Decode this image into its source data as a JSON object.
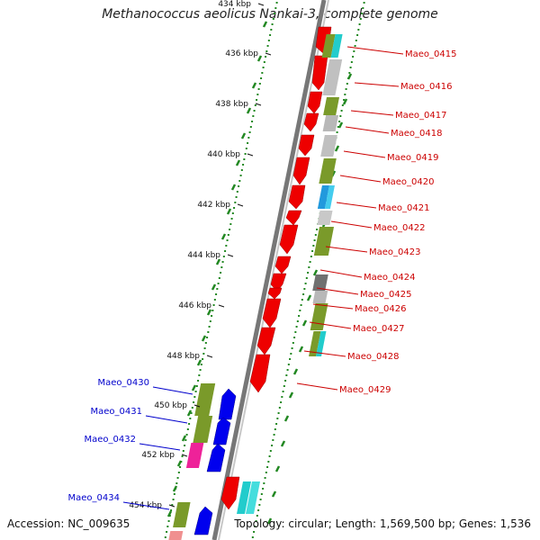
{
  "map": {
    "title": "Methanococcus aeolicus Nankai-3, complete genome",
    "accession": "Accession: NC_009635",
    "stats": "Topology: circular; Length: 1,569,500 bp; Genes: 1,536",
    "scale_unit": "kbp",
    "ticks": [
      "434 kbp",
      "436 kbp",
      "438 kbp",
      "440 kbp",
      "442 kbp",
      "444 kbp",
      "446 kbp",
      "448 kbp",
      "450 kbp",
      "452 kbp",
      "454 kbp"
    ],
    "outer_genes": [
      {
        "id": "Maeo_0415",
        "color": "#cc0000"
      },
      {
        "id": "Maeo_0416",
        "color": "#cc0000"
      },
      {
        "id": "Maeo_0417",
        "color": "#cc0000"
      },
      {
        "id": "Maeo_0418",
        "color": "#cc0000"
      },
      {
        "id": "Maeo_0419",
        "color": "#cc0000"
      },
      {
        "id": "Maeo_0420",
        "color": "#cc0000"
      },
      {
        "id": "Maeo_0421",
        "color": "#cc0000"
      },
      {
        "id": "Maeo_0422",
        "color": "#cc0000"
      },
      {
        "id": "Maeo_0423",
        "color": "#cc0000"
      },
      {
        "id": "Maeo_0424",
        "color": "#cc0000"
      },
      {
        "id": "Maeo_0425",
        "color": "#cc0000"
      },
      {
        "id": "Maeo_0426",
        "color": "#cc0000"
      },
      {
        "id": "Maeo_0427",
        "color": "#cc0000"
      },
      {
        "id": "Maeo_0428",
        "color": "#cc0000"
      },
      {
        "id": "Maeo_0429",
        "color": "#cc0000"
      }
    ],
    "inner_genes": [
      {
        "id": "Maeo_0430",
        "color": "#0000cc"
      },
      {
        "id": "Maeo_0431",
        "color": "#0000cc"
      },
      {
        "id": "Maeo_0432",
        "color": "#0000cc"
      },
      {
        "id": "Maeo_0434",
        "color": "#0000cc"
      }
    ],
    "colors": {
      "forward": "#ee0000",
      "reverse": "#0000ee",
      "olive": "#7a9a2a",
      "gray": "#b8b8b8",
      "darkgray": "#707070",
      "cyan": "#22cccc",
      "blue": "#2299dd",
      "magenta": "#ee2299",
      "pink": "#f09090",
      "tick": "#228822"
    }
  }
}
